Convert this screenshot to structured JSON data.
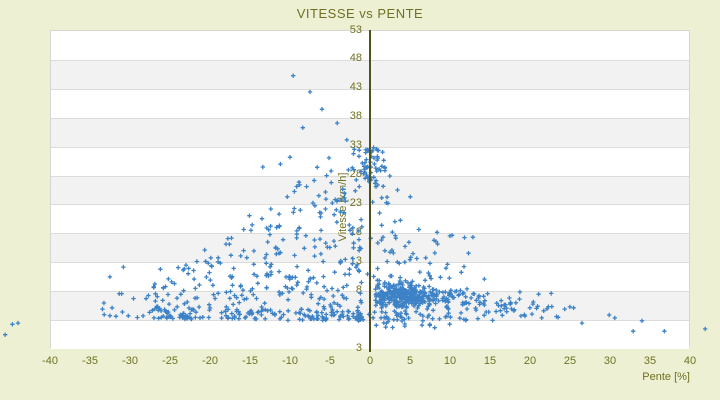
{
  "window": {
    "background": "#edf0d3"
  },
  "chart_data": {
    "type": "scatter",
    "title": "VITESSE vs PENTE",
    "xlabel": "Pente [%]",
    "ylabel": "Vitesse [km/h]",
    "x_tick_labels": [
      "-40",
      "-35",
      "-30",
      "-25",
      "-20",
      "-15",
      "-10",
      "-5",
      "0",
      "5",
      "10",
      "15",
      "20",
      "25",
      "30",
      "35",
      "40"
    ],
    "y_tick_labels": [
      "53",
      "48",
      "43",
      "38",
      "33",
      "28",
      "23",
      "18",
      "13",
      "8",
      "3",
      "3"
    ],
    "xlim": [
      -40,
      40
    ],
    "ylim_labeled": [
      3,
      53
    ],
    "grid": {
      "bands": true,
      "band_colors": [
        "#ffffff",
        "#f2f2f2"
      ],
      "line_color": "#dcdcdc"
    },
    "axis_line_color": "#50521b",
    "text_color": "#6f7122",
    "legend": "none",
    "series": [
      {
        "name": "vitesse-vs-pente",
        "marker": "plus",
        "color": "#3d82c6",
        "size": 5
      }
    ],
    "points_outliers": [
      [
        -9.6,
        45.1
      ],
      [
        -7.5,
        42.3
      ],
      [
        -6.0,
        39.3
      ],
      [
        -4.1,
        36.9
      ],
      [
        -8.4,
        36.1
      ],
      [
        -2.9,
        34.0
      ],
      [
        -10.0,
        31.0
      ],
      [
        -11.2,
        29.8
      ],
      [
        -13.4,
        29.3
      ],
      [
        26.5,
        2.3
      ],
      [
        29.9,
        3.7
      ],
      [
        30.6,
        3.2
      ],
      [
        34.0,
        2.7
      ],
      [
        32.9,
        0.9
      ],
      [
        36.8,
        0.9
      ],
      [
        41.9,
        1.3
      ],
      [
        -44.7,
        2.1
      ],
      [
        -44.0,
        2.3
      ],
      [
        -45.6,
        0.3
      ]
    ],
    "generator": {
      "seed": 1337,
      "clusters": [
        {
          "name": "left-downhill-cloud",
          "type": "triangle",
          "count": 400,
          "p_start": -1,
          "p_span": 27,
          "p_exp": 1.35,
          "v_base": 3,
          "env_offset": 36,
          "env_cap": 33,
          "v_exp": 1.55
        },
        {
          "name": "zero-column-high",
          "type": "gauss2",
          "count": 55,
          "p": [
            0.3,
            0.9,
            -2,
            2.5
          ],
          "v": [
            29.6,
            1.9,
            25.5,
            33.3
          ]
        },
        {
          "name": "zero-column-mid",
          "type": "gp",
          "count": 45,
          "p": [
            2.2,
            1.6,
            -1,
            6
          ],
          "v_base": 9,
          "v_span": 17,
          "v_exp": 1.6
        },
        {
          "name": "uphill-dense-blob",
          "type": "gauss2",
          "count": 310,
          "p": [
            4.2,
            2.2,
            0.7,
            11
          ],
          "v": [
            7.0,
            1.05,
            4.6,
            9.8
          ]
        },
        {
          "name": "uphill-chain",
          "type": "ug",
          "count": 45,
          "p": [
            9,
            14.5
          ],
          "v": [
            6.6,
            0.8,
            4.5,
            8.5
          ]
        },
        {
          "name": "uphill-tail",
          "type": "ug",
          "count": 22,
          "p": [
            14,
            23
          ],
          "v": [
            5.9,
            0.9,
            3.5,
            8
          ]
        },
        {
          "name": "right-sparse",
          "type": "uu",
          "count": 22,
          "p": [
            15,
            26
          ],
          "v": [
            3.2,
            6.2
          ]
        },
        {
          "name": "mid-right-scatter",
          "type": "gu",
          "count": 28,
          "p": [
            8,
            2.6,
            4.5,
            15
          ],
          "v": [
            9,
            18.5
          ]
        },
        {
          "name": "low-scatter",
          "type": "gu",
          "count": 95,
          "p": [
            0,
            7.5,
            -25,
            21
          ],
          "v": [
            2.7,
            4.8
          ]
        },
        {
          "name": "very-low",
          "type": "uu",
          "count": 14,
          "p": [
            0.5,
            10
          ],
          "v": [
            1.2,
            2.8
          ]
        },
        {
          "name": "far-left-sparse",
          "type": "up",
          "count": 22,
          "p": [
            -33.5,
            -24
          ],
          "v_base": 3,
          "v_span": 9,
          "v_exp": 1.6
        }
      ]
    }
  }
}
